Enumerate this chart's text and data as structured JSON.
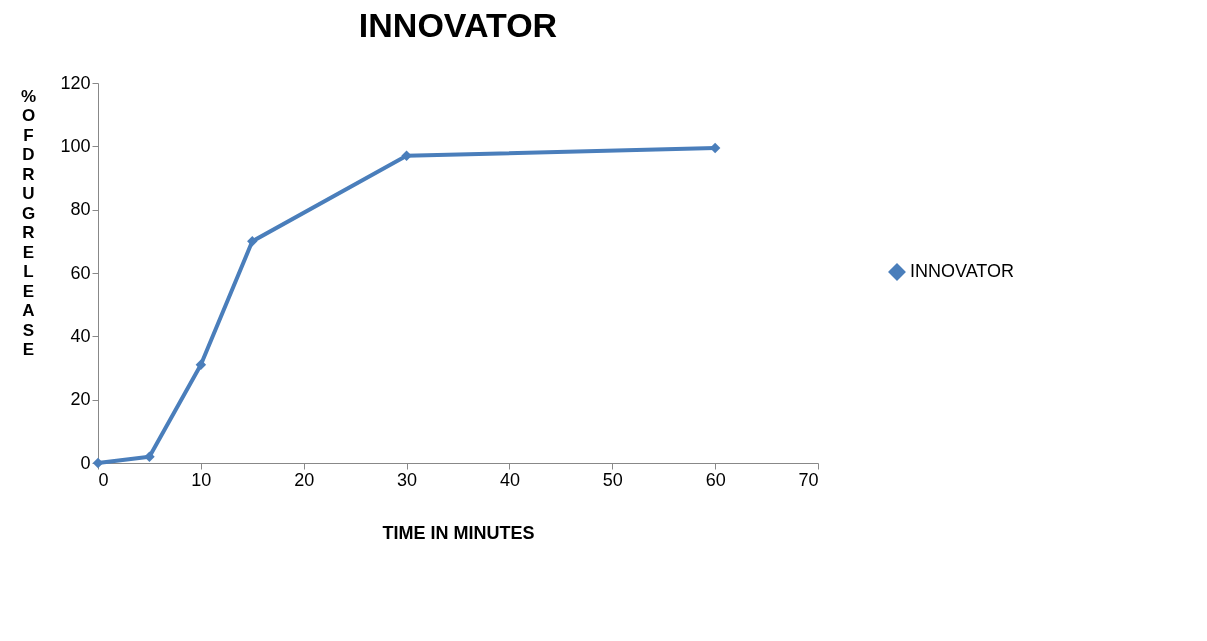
{
  "chart_data": {
    "type": "line",
    "title": "INNOVATOR",
    "xlabel": "TIME IN MINUTES",
    "ylabel": "% OF DRUG RELEASE",
    "x": [
      0,
      5,
      10,
      15,
      30,
      60
    ],
    "series": [
      {
        "name": "INNOVATOR",
        "color": "#4a7ebb",
        "values": [
          0,
          2,
          31,
          70,
          97,
          99.5
        ]
      }
    ],
    "xlim": [
      0,
      70
    ],
    "xticks": [
      0,
      10,
      20,
      30,
      40,
      50,
      60,
      70
    ],
    "ylim": [
      0,
      120
    ],
    "yticks": [
      0,
      20,
      40,
      60,
      80,
      100,
      120
    ],
    "grid": false,
    "legend": "right",
    "marker": "diamond",
    "line_style": "solid"
  }
}
